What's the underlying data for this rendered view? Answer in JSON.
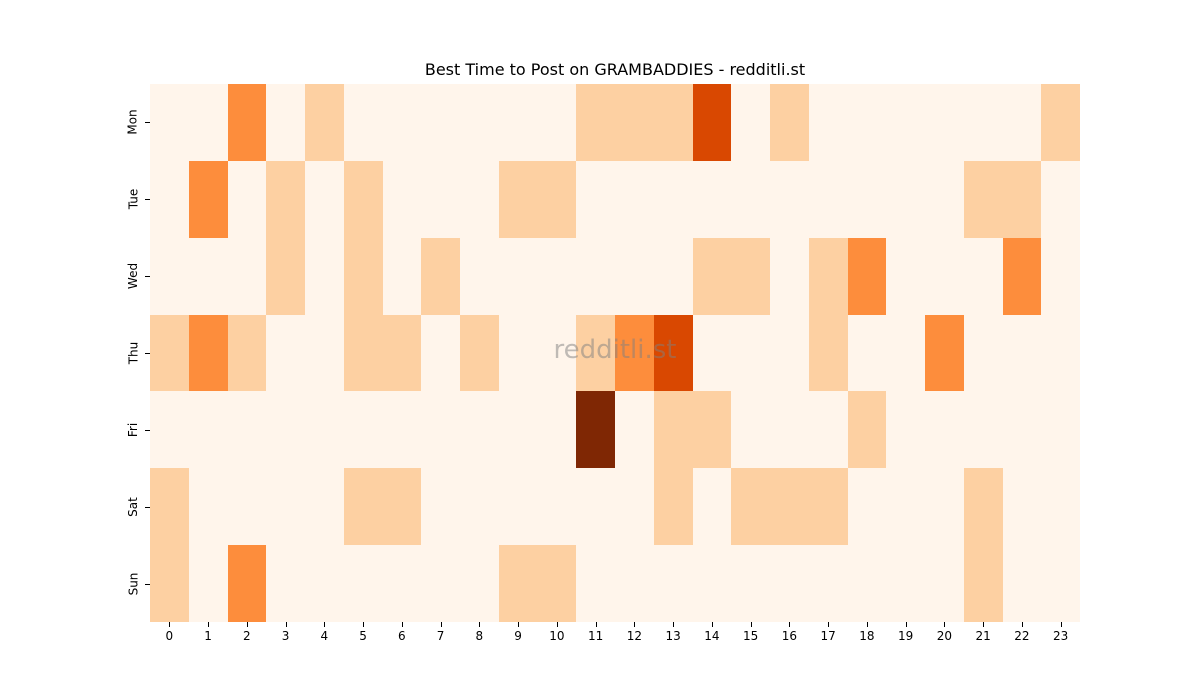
{
  "chart_data": {
    "type": "heatmap",
    "title": "Best Time to Post on GRAMBADDIES - redditli.st",
    "xlabel": "",
    "ylabel": "",
    "x": [
      "0",
      "1",
      "2",
      "3",
      "4",
      "5",
      "6",
      "7",
      "8",
      "9",
      "10",
      "11",
      "12",
      "13",
      "14",
      "15",
      "16",
      "17",
      "18",
      "19",
      "20",
      "21",
      "22",
      "23"
    ],
    "y": [
      "Mon",
      "Tue",
      "Wed",
      "Thu",
      "Fri",
      "Sat",
      "Sun"
    ],
    "colormap": "Oranges",
    "level_colors": [
      "#fff5eb",
      "#fdd0a2",
      "#fd8d3c",
      "#d94801",
      "#7f2704"
    ],
    "values": [
      [
        0,
        0,
        2,
        0,
        1,
        0,
        0,
        0,
        0,
        0,
        0,
        1,
        1,
        1,
        3,
        0,
        1,
        0,
        0,
        0,
        0,
        0,
        0,
        1
      ],
      [
        0,
        2,
        0,
        1,
        0,
        1,
        0,
        0,
        0,
        1,
        1,
        0,
        0,
        0,
        0,
        0,
        0,
        0,
        0,
        0,
        0,
        1,
        1,
        0
      ],
      [
        0,
        0,
        0,
        1,
        0,
        1,
        0,
        1,
        0,
        0,
        0,
        0,
        0,
        0,
        1,
        1,
        0,
        1,
        2,
        0,
        0,
        0,
        2,
        0
      ],
      [
        1,
        2,
        1,
        0,
        0,
        1,
        1,
        0,
        1,
        0,
        0,
        1,
        2,
        3,
        0,
        0,
        0,
        1,
        0,
        0,
        2,
        0,
        0,
        0
      ],
      [
        0,
        0,
        0,
        0,
        0,
        0,
        0,
        0,
        0,
        0,
        0,
        4,
        0,
        1,
        1,
        0,
        0,
        0,
        1,
        0,
        0,
        0,
        0,
        0
      ],
      [
        1,
        0,
        0,
        0,
        0,
        1,
        1,
        0,
        0,
        0,
        0,
        0,
        0,
        1,
        0,
        1,
        1,
        1,
        0,
        0,
        0,
        1,
        0,
        0
      ],
      [
        1,
        0,
        2,
        0,
        0,
        0,
        0,
        0,
        0,
        1,
        1,
        0,
        0,
        0,
        0,
        0,
        0,
        0,
        0,
        0,
        0,
        1,
        0,
        0
      ]
    ],
    "grid": false,
    "legend": "none",
    "watermark": "redditli.st"
  }
}
